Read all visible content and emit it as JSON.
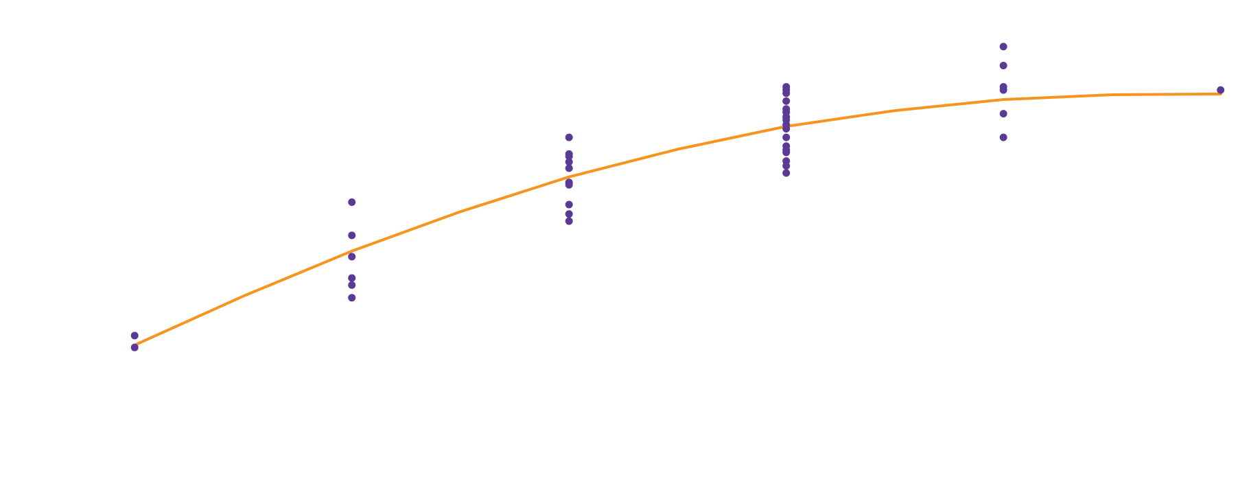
{
  "chart_data": {
    "type": "scatter",
    "xlim": [
      -0.62,
      5.08
    ],
    "ylim": [
      -0.25,
      6
    ],
    "series": [
      {
        "type": "scatter",
        "color": "#5b3a96",
        "x": [
          0,
          0,
          1,
          1,
          1,
          1,
          1,
          1,
          2,
          2,
          2,
          2,
          2,
          2,
          2,
          2,
          2,
          2,
          3,
          3,
          3,
          3,
          3,
          3,
          3,
          3,
          3,
          3,
          3,
          3,
          3,
          3,
          3,
          3,
          3,
          4,
          4,
          4,
          4,
          4,
          4,
          5
        ],
        "values": [
          1.75,
          1.6,
          3.44,
          3.02,
          2.75,
          2.48,
          2.39,
          2.23,
          4.26,
          4.05,
          4.02,
          3.95,
          3.87,
          3.69,
          3.66,
          3.41,
          3.29,
          3.2,
          4.9,
          4.86,
          4.82,
          4.72,
          4.62,
          4.58,
          4.52,
          4.48,
          4.42,
          4.37,
          4.26,
          4.15,
          4.1,
          4.07,
          3.96,
          3.9,
          3.81,
          5.41,
          5.17,
          4.9,
          4.86,
          4.56,
          4.26,
          4.86
        ]
      },
      {
        "type": "line",
        "color": "#f7941d",
        "x": [
          0,
          0.5,
          1,
          1.5,
          2,
          2.5,
          3,
          3.5,
          4,
          4.5,
          5
        ],
        "values": [
          1.63,
          2.25,
          2.82,
          3.32,
          3.76,
          4.11,
          4.4,
          4.6,
          4.74,
          4.8,
          4.81
        ]
      }
    ]
  }
}
